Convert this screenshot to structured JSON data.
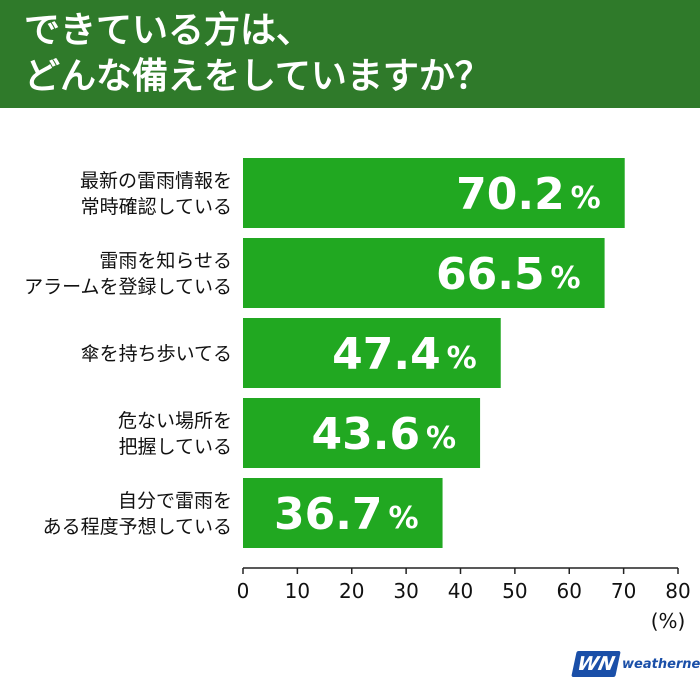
{
  "header": {
    "title": "できている方は、\nどんな備えをしていますか？",
    "background_color": "#2f7a2a",
    "text_color": "#ffffff"
  },
  "chart_data": {
    "type": "bar",
    "orientation": "horizontal",
    "categories": [
      "最新の雷雨情報を\n常時確認している",
      "雷雨を知らせる\nアラームを登録している",
      "傘を持ち歩いてる",
      "危ない場所を\n把握している",
      "自分で雷雨を\nある程度予想している"
    ],
    "values": [
      70.2,
      66.5,
      47.4,
      43.6,
      36.7
    ],
    "value_labels": [
      "70.2",
      "66.5",
      "47.4",
      "43.6",
      "36.7"
    ],
    "value_suffix": "%",
    "xlim": [
      0,
      80
    ],
    "xticks": [
      0,
      10,
      20,
      30,
      40,
      50,
      60,
      70,
      80
    ],
    "x_unit": "(%)",
    "bar_color": "#21a821",
    "grid": false,
    "title": "",
    "xlabel": "",
    "ylabel": ""
  },
  "logo": {
    "mark": "WN",
    "text": "weathernews",
    "color": "#1a4fa8"
  }
}
